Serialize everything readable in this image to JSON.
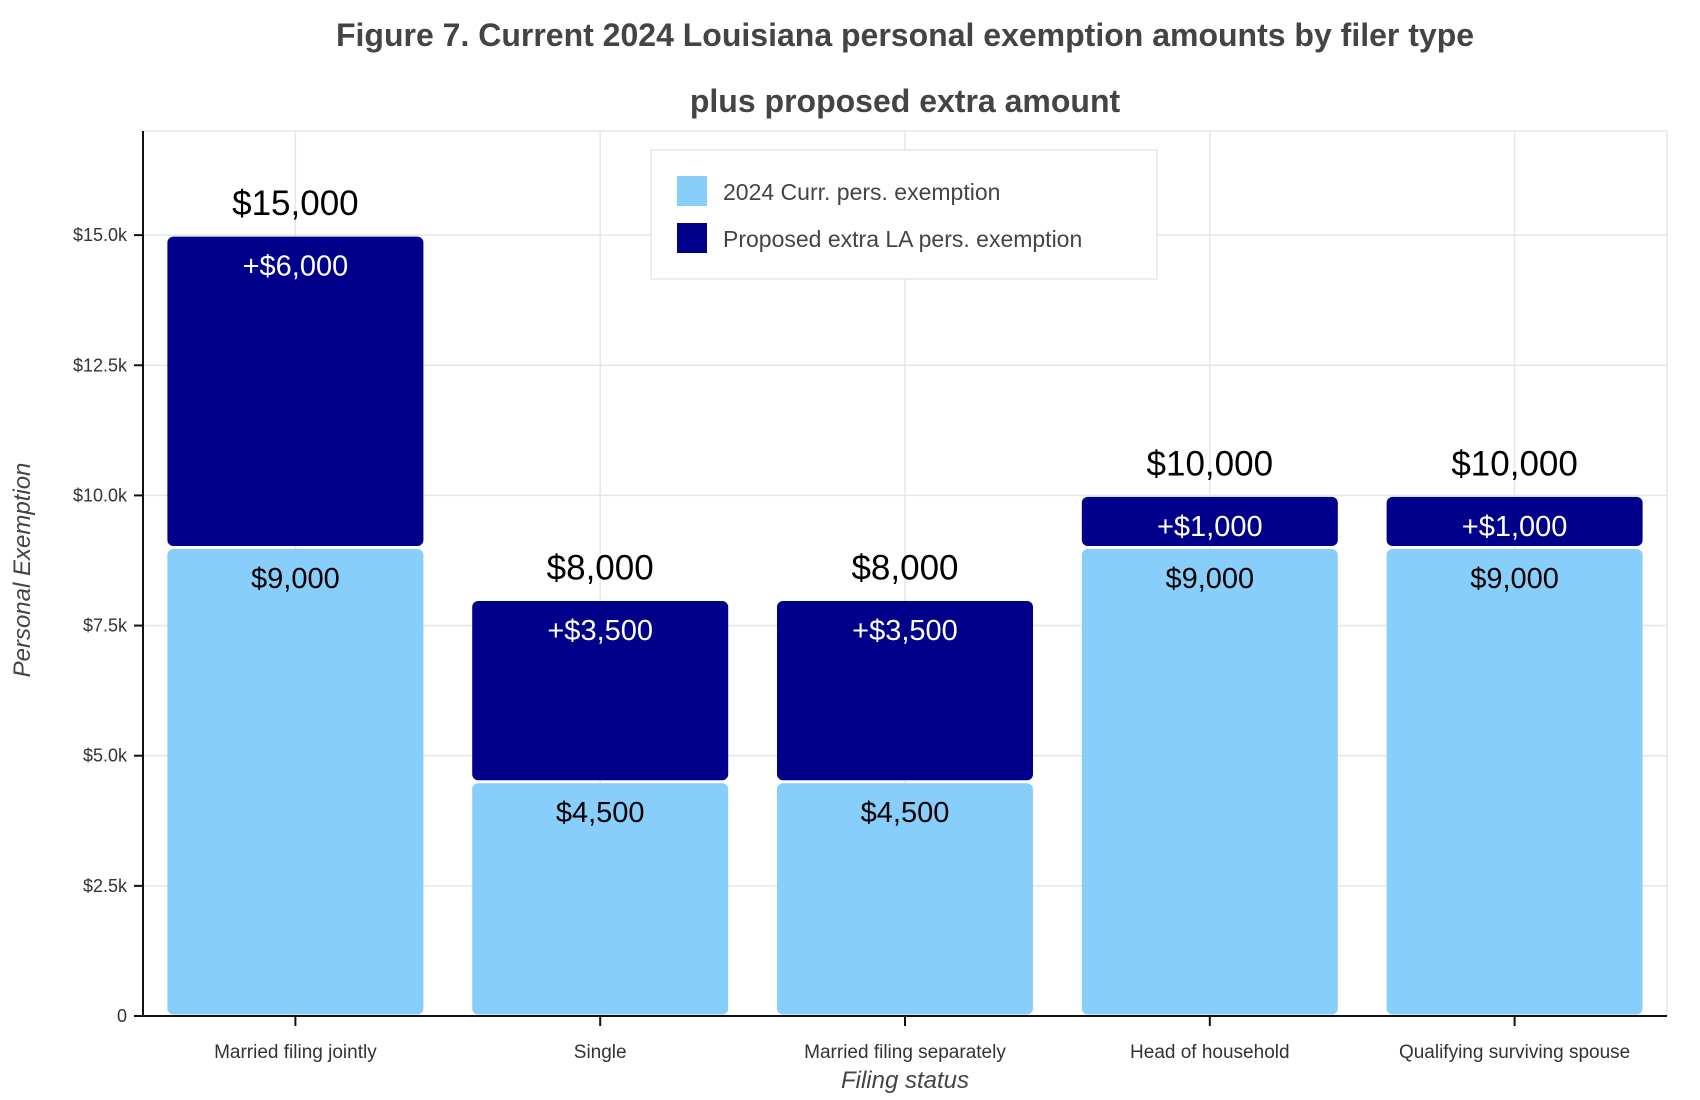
{
  "chart_data": {
    "type": "bar",
    "stacked": true,
    "title_lines": [
      "Figure 7. Current 2024 Louisiana personal exemption amounts by filer type",
      "plus proposed extra amount"
    ],
    "xlabel": "Filing status",
    "ylabel": "Personal Exemption",
    "ylim": [
      0,
      17000
    ],
    "yticks": [
      0,
      2500,
      5000,
      7500,
      10000,
      12500,
      15000
    ],
    "ytick_labels": [
      "0",
      "$2.5k",
      "$5.0k",
      "$7.5k",
      "$10.0k",
      "$12.5k",
      "$15.0k"
    ],
    "grid": true,
    "legend_position": "top-center",
    "categories": [
      "Married filing jointly",
      "Single",
      "Married filing separately",
      "Head of household",
      "Qualifying surviving spouse"
    ],
    "series": [
      {
        "name": "2024 Curr. pers. exemption",
        "color": "#87cefa",
        "values": [
          9000,
          4500,
          4500,
          9000,
          9000
        ],
        "labels": [
          "$9,000",
          "$4,500",
          "$4,500",
          "$9,000",
          "$9,000"
        ]
      },
      {
        "name": "Proposed extra LA pers. exemption",
        "color": "#00008b",
        "values": [
          6000,
          3500,
          3500,
          1000,
          1000
        ],
        "labels": [
          "+$6,000",
          "+$3,500",
          "+$3,500",
          "+$1,000",
          "+$1,000"
        ]
      }
    ],
    "totals": [
      15000,
      8000,
      8000,
      10000,
      10000
    ],
    "total_labels": [
      "$15,000",
      "$8,000",
      "$8,000",
      "$10,000",
      "$10,000"
    ]
  }
}
